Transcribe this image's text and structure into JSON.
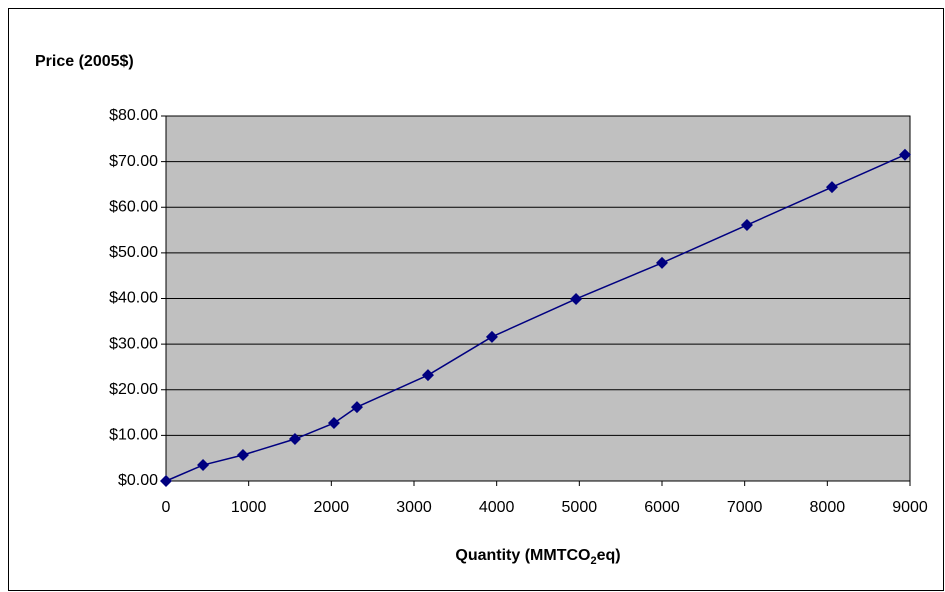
{
  "chart_data": {
    "type": "line",
    "ylabel": "Price (2005$)",
    "xlabel": [
      "Quantity (MMTCO",
      "2",
      "eq)"
    ],
    "x": [
      0,
      448,
      931,
      1560,
      2032,
      2310,
      3169,
      3943,
      4960,
      6000,
      7028,
      8056,
      8939
    ],
    "series": [
      {
        "color": "#000080",
        "values": [
          0,
          3.5,
          5.7,
          9.2,
          12.7,
          16.2,
          23.2,
          31.6,
          39.9,
          47.8,
          56.1,
          64.4,
          71.5
        ]
      }
    ],
    "xlim": [
      0,
      9000
    ],
    "xticks": [
      0,
      1000,
      2000,
      3000,
      4000,
      5000,
      6000,
      7000,
      8000,
      9000
    ],
    "ylim": [
      0,
      80
    ],
    "yticks": [
      {
        "value": 0,
        "label": "$0.00"
      },
      {
        "value": 10,
        "label": "$10.00"
      },
      {
        "value": 20,
        "label": "$20.00"
      },
      {
        "value": 30,
        "label": "$30.00"
      },
      {
        "value": 40,
        "label": "$40.00"
      },
      {
        "value": 50,
        "label": "$50.00"
      },
      {
        "value": 60,
        "label": "$60.00"
      },
      {
        "value": 70,
        "label": "$70.00"
      },
      {
        "value": 80,
        "label": "$80.00"
      }
    ],
    "grid": true,
    "plot_background": "#c0c0c0"
  }
}
